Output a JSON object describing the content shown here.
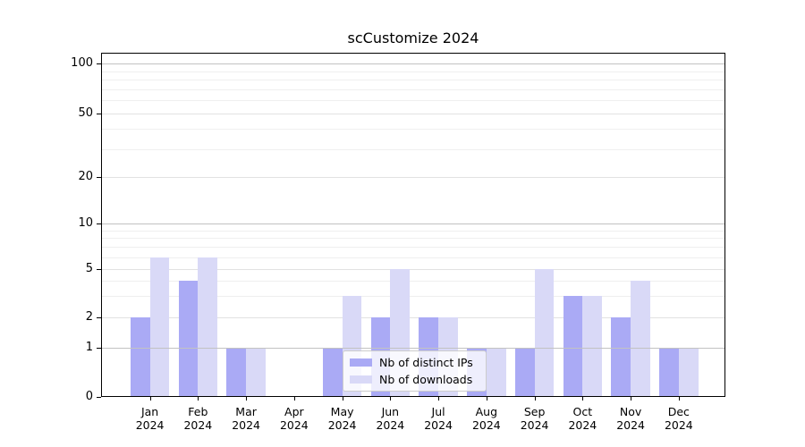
{
  "chart_data": {
    "type": "bar",
    "title": "scCustomize 2024",
    "categories": [
      "Jan",
      "Feb",
      "Mar",
      "Apr",
      "May",
      "Jun",
      "Jul",
      "Aug",
      "Sep",
      "Oct",
      "Nov",
      "Dec"
    ],
    "x_year_label": "2024",
    "series": [
      {
        "name": "Nb of distinct IPs",
        "color": "#aaaaf5",
        "values": [
          2,
          4,
          1,
          0,
          1,
          2,
          2,
          1,
          1,
          3,
          2,
          1
        ]
      },
      {
        "name": "Nb of downloads",
        "color": "#d9d9f7",
        "values": [
          6,
          6,
          1,
          0,
          3,
          5,
          2,
          1,
          5,
          3,
          4,
          1
        ]
      }
    ],
    "y_ticks": [
      0,
      1,
      2,
      5,
      10,
      20,
      50,
      100
    ],
    "ylim": [
      0,
      100
    ],
    "y_scale": "log-like",
    "grid": true,
    "legend_position": "lower center",
    "colors": {
      "major_grid": "#c2c2c2",
      "labeled_minor_grid": "#e2e2e2",
      "minor_grid": "#efefef",
      "axis": "#000000"
    }
  }
}
